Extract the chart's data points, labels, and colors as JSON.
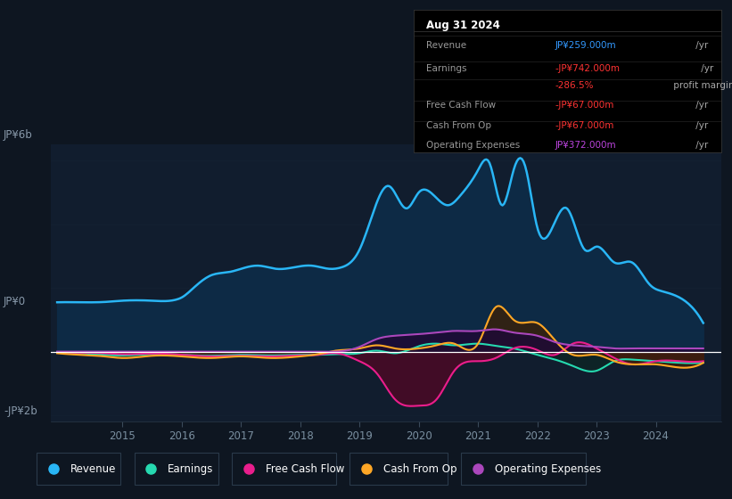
{
  "bg_color": "#0e1621",
  "plot_bg_color": "#111d2e",
  "grid_color": "#1e2d3d",
  "title_box_bg": "#000000",
  "title_box_border": "#333333",
  "ylabel_6b": "JP¥6b",
  "ylabel_0": "JP¥0",
  "ylabel_n2b": "-JP¥2b",
  "ylim": [
    -2200,
    6500
  ],
  "xlim": [
    2013.8,
    2025.1
  ],
  "x_ticks": [
    2015,
    2016,
    2017,
    2018,
    2019,
    2020,
    2021,
    2022,
    2023,
    2024
  ],
  "legend": [
    {
      "label": "Revenue",
      "color": "#29b6f6"
    },
    {
      "label": "Earnings",
      "color": "#26d9b0"
    },
    {
      "label": "Free Cash Flow",
      "color": "#e91e8c"
    },
    {
      "label": "Cash From Op",
      "color": "#ffa726"
    },
    {
      "label": "Operating Expenses",
      "color": "#ab47bc"
    }
  ],
  "revenue_x": [
    2013.9,
    2014.3,
    2014.7,
    2015.0,
    2015.5,
    2015.9,
    2016.0,
    2016.2,
    2016.5,
    2016.8,
    2017.0,
    2017.3,
    2017.6,
    2017.9,
    2018.2,
    2018.5,
    2018.7,
    2019.0,
    2019.2,
    2019.5,
    2019.8,
    2020.0,
    2020.2,
    2020.5,
    2020.7,
    2021.0,
    2021.2,
    2021.4,
    2021.6,
    2021.8,
    2022.0,
    2022.2,
    2022.5,
    2022.8,
    2023.0,
    2023.3,
    2023.6,
    2023.9,
    2024.1,
    2024.4,
    2024.8
  ],
  "revenue_y": [
    1550,
    1550,
    1560,
    1600,
    1600,
    1630,
    1700,
    2000,
    2400,
    2500,
    2600,
    2700,
    2600,
    2650,
    2700,
    2600,
    2650,
    3200,
    4200,
    5200,
    4500,
    5000,
    5000,
    4600,
    4900,
    5700,
    5900,
    4600,
    5700,
    5800,
    3900,
    3700,
    4500,
    3200,
    3300,
    2800,
    2800,
    2100,
    1900,
    1700,
    900
  ],
  "earnings_x": [
    2013.9,
    2014.3,
    2014.7,
    2015.0,
    2015.5,
    2016.0,
    2016.5,
    2017.0,
    2017.5,
    2018.0,
    2018.3,
    2018.6,
    2019.0,
    2019.3,
    2019.6,
    2020.0,
    2020.3,
    2020.6,
    2021.0,
    2021.3,
    2021.6,
    2022.0,
    2022.3,
    2022.6,
    2023.0,
    2023.3,
    2023.6,
    2024.0,
    2024.4,
    2024.8
  ],
  "earnings_y": [
    -20,
    -50,
    -100,
    -120,
    -80,
    -100,
    -130,
    -100,
    -120,
    -100,
    -100,
    -80,
    -50,
    30,
    -50,
    170,
    250,
    200,
    250,
    180,
    100,
    -100,
    -250,
    -450,
    -600,
    -300,
    -250,
    -300,
    -350,
    -350
  ],
  "fcf_x": [
    2013.9,
    2014.3,
    2014.7,
    2015.0,
    2015.5,
    2016.0,
    2016.5,
    2017.0,
    2017.5,
    2018.0,
    2018.3,
    2018.6,
    2019.0,
    2019.3,
    2019.6,
    2020.0,
    2020.3,
    2020.6,
    2021.0,
    2021.3,
    2021.6,
    2022.0,
    2022.3,
    2022.6,
    2023.0,
    2023.3,
    2023.6,
    2024.0,
    2024.4,
    2024.8
  ],
  "fcf_y": [
    -30,
    -30,
    -50,
    -80,
    -60,
    -100,
    -150,
    -130,
    -150,
    -120,
    -100,
    -50,
    -300,
    -700,
    -1500,
    -1700,
    -1500,
    -600,
    -300,
    -200,
    100,
    50,
    -100,
    250,
    100,
    -200,
    -400,
    -300,
    -300,
    -300
  ],
  "cashop_x": [
    2013.9,
    2014.3,
    2014.7,
    2015.0,
    2015.5,
    2016.0,
    2016.5,
    2017.0,
    2017.5,
    2018.0,
    2018.3,
    2018.6,
    2019.0,
    2019.3,
    2019.6,
    2020.0,
    2020.3,
    2020.6,
    2021.0,
    2021.3,
    2021.6,
    2022.0,
    2022.3,
    2022.6,
    2023.0,
    2023.3,
    2023.6,
    2024.0,
    2024.4,
    2024.8
  ],
  "cashop_y": [
    -50,
    -100,
    -150,
    -200,
    -130,
    -150,
    -200,
    -150,
    -200,
    -150,
    -80,
    30,
    100,
    200,
    100,
    100,
    200,
    250,
    250,
    1400,
    1000,
    900,
    350,
    -100,
    -100,
    -300,
    -400,
    -400,
    -500,
    -350
  ],
  "opex_x": [
    2013.9,
    2014.3,
    2014.7,
    2015.0,
    2015.5,
    2016.0,
    2016.5,
    2017.0,
    2017.5,
    2018.0,
    2018.3,
    2018.6,
    2019.0,
    2019.3,
    2019.6,
    2020.0,
    2020.3,
    2020.6,
    2021.0,
    2021.3,
    2021.6,
    2022.0,
    2022.3,
    2022.6,
    2023.0,
    2023.3,
    2023.6,
    2024.0,
    2024.4,
    2024.8
  ],
  "opex_y": [
    0,
    0,
    0,
    0,
    0,
    0,
    0,
    0,
    0,
    0,
    0,
    0,
    150,
    400,
    500,
    550,
    600,
    650,
    650,
    700,
    600,
    500,
    300,
    200,
    150,
    100,
    100,
    100,
    100,
    100
  ]
}
